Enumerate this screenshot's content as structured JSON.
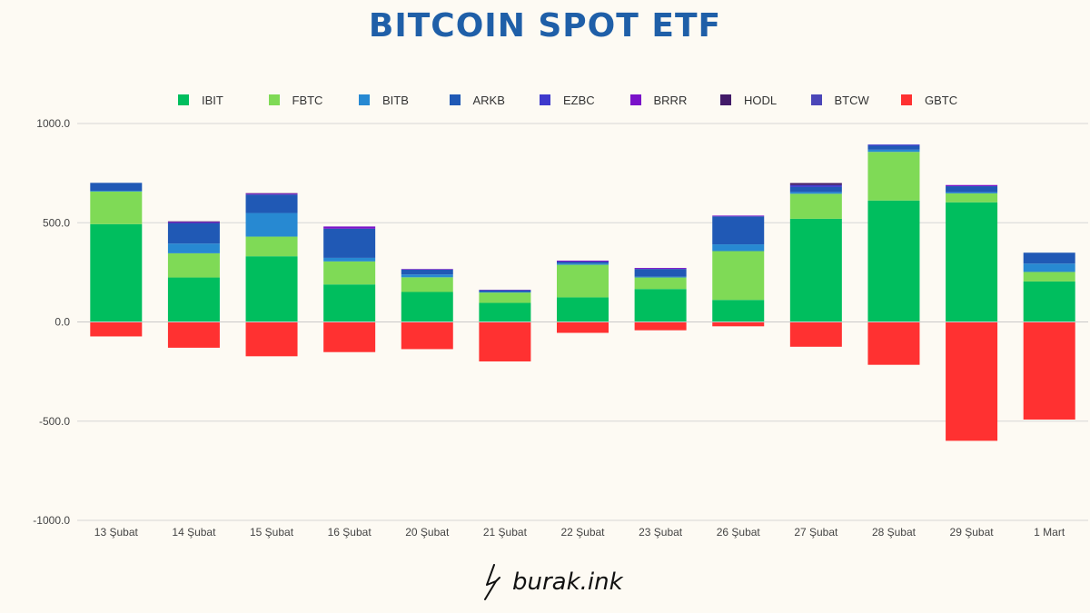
{
  "title": "BITCOIN SPOT ETF",
  "brand": {
    "text": "burak.ink",
    "icon": "lightning-pen-logo-icon"
  },
  "chart_data": {
    "type": "bar",
    "stacked": true,
    "title": "BITCOIN SPOT ETF",
    "xlabel": "",
    "ylabel": "",
    "ylim": [
      -1000,
      1000
    ],
    "yticks": [
      1000,
      500,
      0,
      -500,
      -1000
    ],
    "ytick_labels": [
      "1000.0",
      "500.0",
      "0.0",
      "-500.0",
      "-1000.0"
    ],
    "grid": true,
    "legend_position": "top",
    "categories": [
      "13 Şubat",
      "14 Şubat",
      "15 Şubat",
      "16 Şubat",
      "20 Şubat",
      "21 Şubat",
      "22 Şubat",
      "23 Şubat",
      "26 Şubat",
      "27 Şubat",
      "28 Şubat",
      "29 Şubat",
      "1 Mart"
    ],
    "series": [
      {
        "name": "IBIT",
        "color": "#00be5e",
        "values": [
          493,
          224,
          331,
          189,
          151,
          96,
          124,
          166,
          111,
          520,
          612,
          603,
          204
        ]
      },
      {
        "name": "FBTC",
        "color": "#7fda56",
        "values": [
          164,
          122,
          99,
          116,
          74,
          52,
          164,
          58,
          246,
          126,
          245,
          45,
          48
        ]
      },
      {
        "name": "BITB",
        "color": "#2789d2",
        "values": [
          4,
          49,
          119,
          18,
          14,
          3,
          6,
          4,
          34,
          9,
          11,
          6,
          42
        ]
      },
      {
        "name": "ARKB",
        "color": "#2059b5",
        "values": [
          40,
          104,
          93,
          147,
          25,
          9,
          10,
          39,
          141,
          25,
          20,
          30,
          55
        ]
      },
      {
        "name": "EZBC",
        "color": "#3e39cc",
        "values": [
          0,
          0,
          0,
          0,
          0,
          0,
          0,
          0,
          0,
          10,
          6,
          0,
          0
        ]
      },
      {
        "name": "BRRR",
        "color": "#7a12c9",
        "values": [
          0,
          5,
          5,
          11,
          3,
          2,
          5,
          5,
          4,
          0,
          0,
          6,
          0
        ]
      },
      {
        "name": "HODL",
        "color": "#421a68",
        "values": [
          0,
          3,
          2,
          0,
          0,
          0,
          0,
          0,
          0,
          10,
          0,
          0,
          0
        ]
      },
      {
        "name": "BTCW",
        "color": "#4b46b8",
        "values": [
          0,
          0,
          0,
          0,
          0,
          0,
          0,
          0,
          0,
          0,
          0,
          0,
          0
        ]
      },
      {
        "name": "GBTC",
        "color": "#ff3131",
        "values": [
          -73,
          -130,
          -173,
          -152,
          -137,
          -199,
          -55,
          -42,
          -22,
          -125,
          -216,
          -599,
          -492
        ]
      }
    ]
  }
}
